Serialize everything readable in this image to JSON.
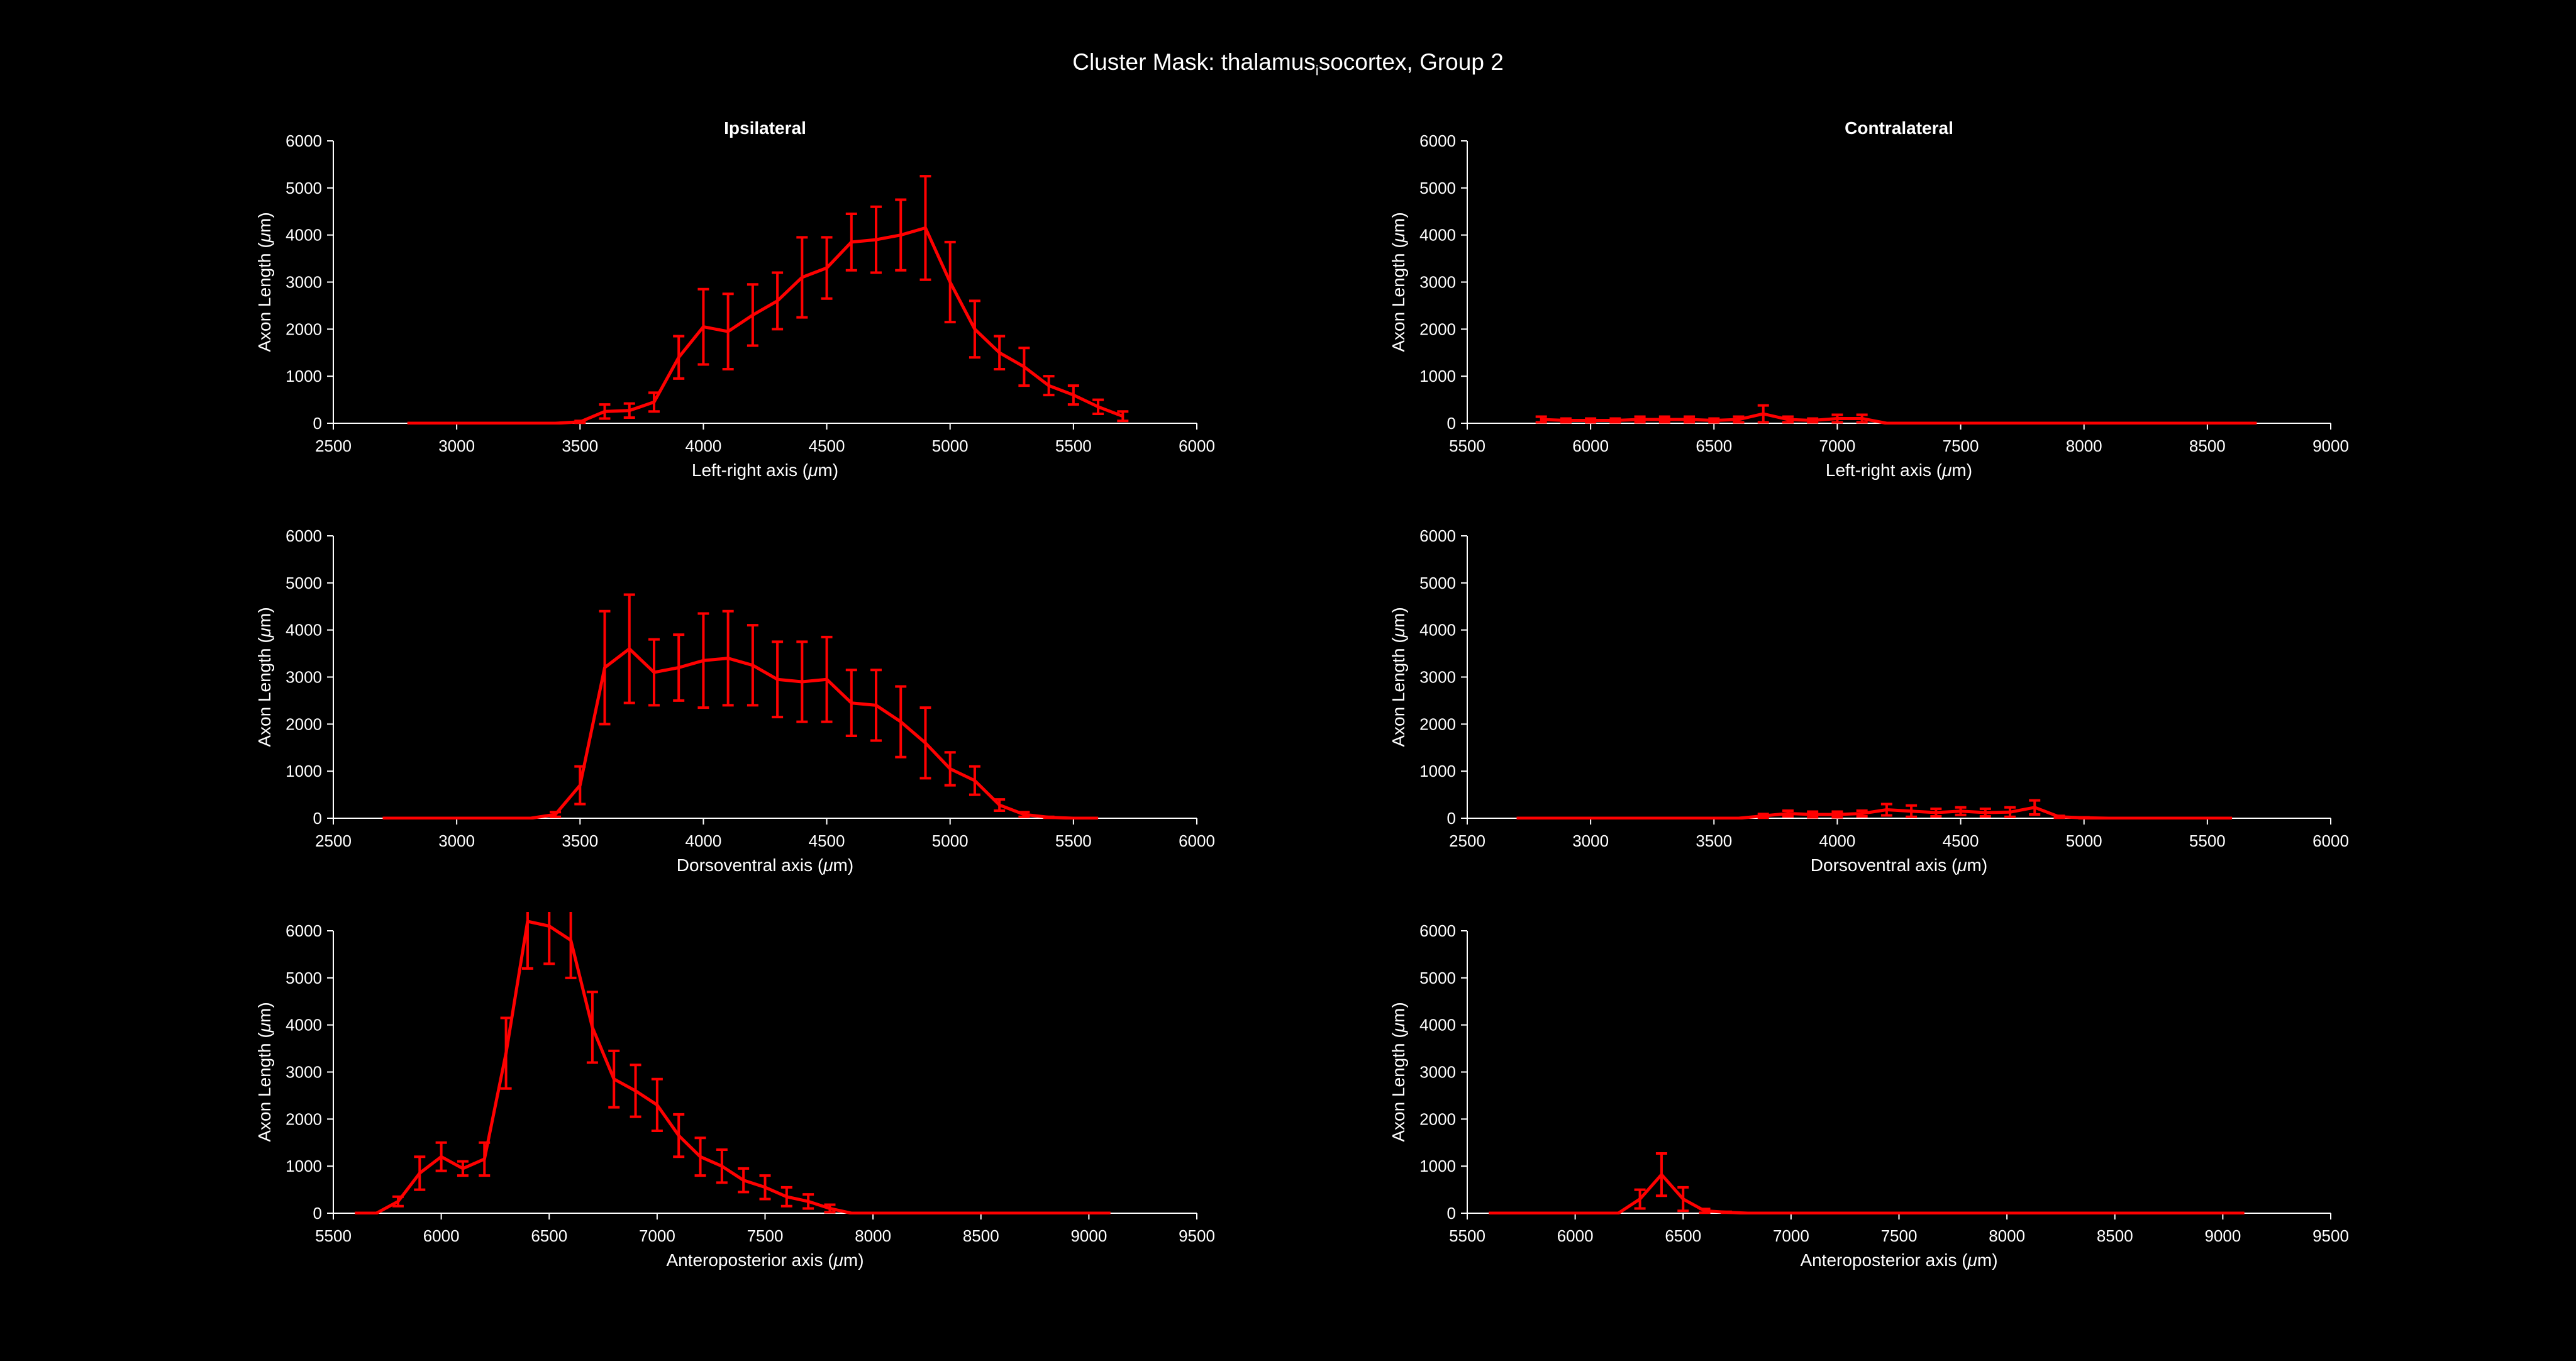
{
  "figure": {
    "title": "Cluster Mask: thalamus",
    "title_sub": "i",
    "title_tail": "socortex, Group 2",
    "col_titles": [
      "Ipsilateral",
      "Contralateral"
    ]
  },
  "colors": {
    "background": "#000000",
    "axes": "#ffffff",
    "series": "#ff0000"
  },
  "chart_data": [
    {
      "type": "line",
      "panel": "ipsilateral-left-right",
      "title": "Ipsilateral",
      "xlabel": "Left-right axis (μm)",
      "ylabel": "Axon Length (μm)",
      "xlim": [
        2500,
        6000
      ],
      "ylim": [
        0,
        6000
      ],
      "xticks": [
        2500,
        3000,
        3500,
        4000,
        4500,
        5000,
        5500,
        6000
      ],
      "yticks": [
        0,
        1000,
        2000,
        3000,
        4000,
        5000,
        6000
      ],
      "x": [
        2800,
        2900,
        3000,
        3100,
        3200,
        3300,
        3400,
        3500,
        3600,
        3700,
        3800,
        3900,
        4000,
        4100,
        4200,
        4300,
        4400,
        4500,
        4600,
        4700,
        4800,
        4900,
        5000,
        5100,
        5200,
        5300,
        5400,
        5500,
        5600,
        5700
      ],
      "y": [
        0,
        0,
        0,
        0,
        0,
        0,
        0,
        30,
        250,
        270,
        450,
        1400,
        2050,
        1950,
        2300,
        2600,
        3100,
        3300,
        3850,
        3900,
        4000,
        4150,
        3000,
        2000,
        1500,
        1200,
        800,
        600,
        350,
        150
      ],
      "err": [
        0,
        0,
        0,
        0,
        0,
        0,
        0,
        20,
        150,
        150,
        200,
        450,
        800,
        800,
        650,
        600,
        850,
        650,
        600,
        700,
        750,
        1100,
        850,
        600,
        350,
        400,
        200,
        200,
        150,
        100
      ]
    },
    {
      "type": "line",
      "panel": "contralateral-left-right",
      "title": "Contralateral",
      "xlabel": "Left-right axis (μm)",
      "ylabel": "Axon Length (μm)",
      "xlim": [
        5500,
        9000
      ],
      "ylim": [
        0,
        6000
      ],
      "xticks": [
        5500,
        6000,
        6500,
        7000,
        7500,
        8000,
        8500,
        9000
      ],
      "yticks": [
        0,
        1000,
        2000,
        3000,
        4000,
        5000,
        6000
      ],
      "x": [
        5800,
        5900,
        6000,
        6100,
        6200,
        6300,
        6400,
        6500,
        6600,
        6700,
        6800,
        6900,
        7000,
        7100,
        7200,
        7300,
        7400,
        7500,
        7600,
        7700,
        7800,
        7900,
        8000,
        8100,
        8200,
        8300,
        8400,
        8500,
        8600,
        8700
      ],
      "y": [
        80,
        60,
        60,
        60,
        80,
        80,
        80,
        60,
        80,
        200,
        80,
        60,
        100,
        100,
        0,
        0,
        0,
        0,
        0,
        0,
        0,
        0,
        0,
        0,
        0,
        0,
        0,
        0,
        0,
        0
      ],
      "err": [
        60,
        40,
        40,
        40,
        60,
        60,
        60,
        40,
        60,
        180,
        60,
        40,
        80,
        80,
        0,
        0,
        0,
        0,
        0,
        0,
        0,
        0,
        0,
        0,
        0,
        0,
        0,
        0,
        0,
        0
      ]
    },
    {
      "type": "line",
      "panel": "ipsilateral-dorsoventral",
      "title": "",
      "xlabel": "Dorsoventral axis (μm)",
      "ylabel": "Axon Length (μm)",
      "xlim": [
        2500,
        6000
      ],
      "ylim": [
        0,
        6000
      ],
      "xticks": [
        2500,
        3000,
        3500,
        4000,
        4500,
        5000,
        5500,
        6000
      ],
      "yticks": [
        0,
        1000,
        2000,
        3000,
        4000,
        5000,
        6000
      ],
      "x": [
        2700,
        2800,
        2900,
        3000,
        3100,
        3200,
        3300,
        3400,
        3500,
        3600,
        3700,
        3800,
        3900,
        4000,
        4100,
        4200,
        4300,
        4400,
        4500,
        4600,
        4700,
        4800,
        4900,
        5000,
        5100,
        5200,
        5300,
        5400,
        5500,
        5600
      ],
      "y": [
        0,
        0,
        0,
        0,
        0,
        0,
        0,
        80,
        700,
        3200,
        3600,
        3100,
        3200,
        3350,
        3400,
        3250,
        2950,
        2900,
        2950,
        2450,
        2400,
        2050,
        1600,
        1050,
        800,
        280,
        80,
        20,
        0,
        0
      ],
      "err": [
        0,
        0,
        0,
        0,
        0,
        0,
        0,
        50,
        400,
        1200,
        1150,
        700,
        700,
        1000,
        1000,
        850,
        800,
        850,
        900,
        700,
        750,
        750,
        750,
        350,
        300,
        120,
        50,
        10,
        0,
        0
      ]
    },
    {
      "type": "line",
      "panel": "contralateral-dorsoventral",
      "title": "",
      "xlabel": "Dorsoventral axis (μm)",
      "ylabel": "Axon Length (μm)",
      "xlim": [
        2500,
        6000
      ],
      "ylim": [
        0,
        6000
      ],
      "xticks": [
        2500,
        3000,
        3500,
        4000,
        4500,
        5000,
        5500,
        6000
      ],
      "yticks": [
        0,
        1000,
        2000,
        3000,
        4000,
        5000,
        6000
      ],
      "x": [
        2700,
        2800,
        2900,
        3000,
        3100,
        3200,
        3300,
        3400,
        3500,
        3600,
        3700,
        3800,
        3900,
        4000,
        4100,
        4200,
        4300,
        4400,
        4500,
        4600,
        4700,
        4800,
        4900,
        5000,
        5100,
        5200,
        5300,
        5400,
        5500,
        5600
      ],
      "y": [
        0,
        0,
        0,
        0,
        0,
        0,
        0,
        0,
        0,
        0,
        50,
        100,
        80,
        80,
        100,
        180,
        150,
        120,
        150,
        120,
        130,
        230,
        30,
        10,
        0,
        0,
        0,
        0,
        0,
        0
      ],
      "err": [
        0,
        0,
        0,
        0,
        0,
        0,
        0,
        0,
        0,
        0,
        40,
        60,
        60,
        60,
        60,
        120,
        120,
        80,
        80,
        80,
        100,
        150,
        20,
        10,
        0,
        0,
        0,
        0,
        0,
        0
      ]
    },
    {
      "type": "line",
      "panel": "ipsilateral-anteroposterior",
      "title": "",
      "xlabel": "Anteroposterior axis (μm)",
      "ylabel": "Axon Length (μm)",
      "xlim": [
        5500,
        9500
      ],
      "ylim": [
        0,
        6000
      ],
      "xticks": [
        5500,
        6000,
        6500,
        7000,
        7500,
        8000,
        8500,
        9000,
        9500
      ],
      "yticks": [
        0,
        1000,
        2000,
        3000,
        4000,
        5000,
        6000
      ],
      "x": [
        5600,
        5700,
        5800,
        5900,
        6000,
        6100,
        6200,
        6300,
        6400,
        6500,
        6600,
        6700,
        6800,
        6900,
        7000,
        7100,
        7200,
        7300,
        7400,
        7500,
        7600,
        7700,
        7800,
        7900,
        8000,
        8100,
        8200,
        8300,
        8400,
        8500,
        8600,
        8700,
        8800,
        8900,
        9000,
        9100
      ],
      "y": [
        0,
        0,
        250,
        850,
        1200,
        950,
        1150,
        3400,
        6200,
        6100,
        5800,
        3950,
        2850,
        2600,
        2300,
        1650,
        1200,
        1000,
        700,
        550,
        350,
        250,
        100,
        0,
        0,
        0,
        0,
        0,
        0,
        0,
        0,
        0,
        0,
        0,
        0,
        0
      ],
      "err": [
        0,
        0,
        100,
        350,
        300,
        150,
        350,
        750,
        1000,
        800,
        800,
        750,
        600,
        550,
        550,
        450,
        400,
        350,
        250,
        250,
        200,
        150,
        80,
        0,
        0,
        0,
        0,
        0,
        0,
        0,
        0,
        0,
        0,
        0,
        0,
        0
      ]
    },
    {
      "type": "line",
      "panel": "contralateral-anteroposterior",
      "title": "",
      "xlabel": "Anteroposterior axis (μm)",
      "ylabel": "Axon Length (μm)",
      "xlim": [
        5500,
        9500
      ],
      "ylim": [
        0,
        6000
      ],
      "xticks": [
        5500,
        6000,
        6500,
        7000,
        7500,
        8000,
        8500,
        9000,
        9500
      ],
      "yticks": [
        0,
        1000,
        2000,
        3000,
        4000,
        5000,
        6000
      ],
      "x": [
        5600,
        5700,
        5800,
        5900,
        6000,
        6100,
        6200,
        6300,
        6400,
        6500,
        6600,
        6700,
        6800,
        6900,
        7000,
        7100,
        7200,
        7300,
        7400,
        7500,
        7600,
        7700,
        7800,
        7900,
        8000,
        8100,
        8200,
        8300,
        8400,
        8500,
        8600,
        8700,
        8800,
        8900,
        9000,
        9100
      ],
      "y": [
        0,
        0,
        0,
        0,
        0,
        0,
        0,
        300,
        820,
        300,
        50,
        20,
        0,
        0,
        0,
        0,
        0,
        0,
        0,
        0,
        0,
        0,
        0,
        0,
        0,
        0,
        0,
        0,
        0,
        0,
        0,
        0,
        0,
        0,
        0,
        0
      ],
      "err": [
        0,
        0,
        0,
        0,
        0,
        0,
        0,
        200,
        450,
        250,
        40,
        10,
        0,
        0,
        0,
        0,
        0,
        0,
        0,
        0,
        0,
        0,
        0,
        0,
        0,
        0,
        0,
        0,
        0,
        0,
        0,
        0,
        0,
        0,
        0,
        0
      ]
    }
  ]
}
